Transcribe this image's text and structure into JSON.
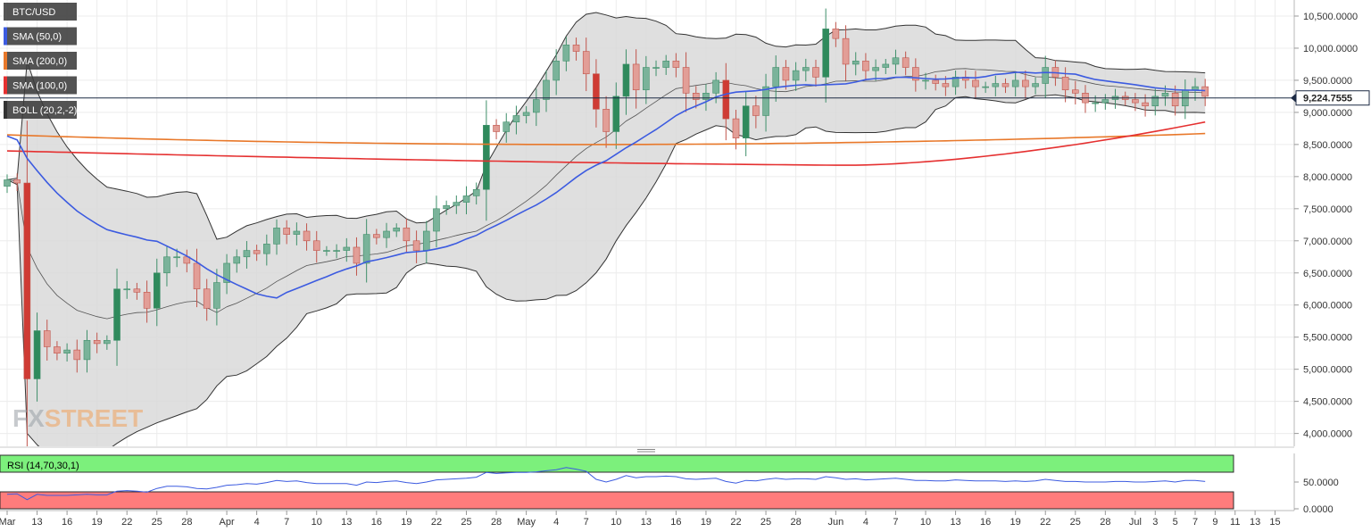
{
  "chart_data": {
    "type": "candlestick",
    "symbol": "BTC/USD",
    "legend": [
      {
        "label": "BTC/USD",
        "color": "#555555"
      },
      {
        "label": "SMA (50,0)",
        "color": "#3c5be0"
      },
      {
        "label": "SMA (200,0)",
        "color": "#e8782a"
      },
      {
        "label": "SMA (100,0)",
        "color": "#e53030"
      },
      {
        "label": "BOLL (20,2,-2)",
        "color": "#333333"
      }
    ],
    "current_price_label": "9,224.7555",
    "current_price": 9224.76,
    "ylim": [
      3800,
      10750
    ],
    "y_ticks": [
      4000,
      4500,
      5000,
      5500,
      6000,
      6500,
      7000,
      7500,
      8000,
      8500,
      9000,
      9500,
      10000,
      10500
    ],
    "y_tick_labels": [
      "4,000.0000",
      "4,500.0000",
      "5,000.0000",
      "5,500.0000",
      "6,000.0000",
      "6,500.0000",
      "7,000.0000",
      "7,500.0000",
      "8,000.0000",
      "8,500.0000",
      "9,000.0000",
      "9,500.0000",
      "10,000.0000",
      "10,500.0000"
    ],
    "x_tick_labels": [
      {
        "day": 0,
        "label": "Mar"
      },
      {
        "day": 3,
        "label": "13"
      },
      {
        "day": 6,
        "label": "16"
      },
      {
        "day": 9,
        "label": "19"
      },
      {
        "day": 12,
        "label": "22"
      },
      {
        "day": 15,
        "label": "25"
      },
      {
        "day": 18,
        "label": "28"
      },
      {
        "day": 22,
        "label": "Apr"
      },
      {
        "day": 25,
        "label": "4"
      },
      {
        "day": 28,
        "label": "7"
      },
      {
        "day": 31,
        "label": "10"
      },
      {
        "day": 34,
        "label": "13"
      },
      {
        "day": 37,
        "label": "16"
      },
      {
        "day": 40,
        "label": "19"
      },
      {
        "day": 43,
        "label": "22"
      },
      {
        "day": 46,
        "label": "25"
      },
      {
        "day": 49,
        "label": "28"
      },
      {
        "day": 52,
        "label": "May"
      },
      {
        "day": 55,
        "label": "4"
      },
      {
        "day": 58,
        "label": "7"
      },
      {
        "day": 61,
        "label": "10"
      },
      {
        "day": 64,
        "label": "13"
      },
      {
        "day": 67,
        "label": "16"
      },
      {
        "day": 70,
        "label": "19"
      },
      {
        "day": 73,
        "label": "22"
      },
      {
        "day": 76,
        "label": "25"
      },
      {
        "day": 79,
        "label": "28"
      },
      {
        "day": 83,
        "label": "Jun"
      },
      {
        "day": 86,
        "label": "4"
      },
      {
        "day": 89,
        "label": "7"
      },
      {
        "day": 92,
        "label": "10"
      },
      {
        "day": 95,
        "label": "13"
      },
      {
        "day": 98,
        "label": "16"
      },
      {
        "day": 101,
        "label": "19"
      },
      {
        "day": 104,
        "label": "22"
      },
      {
        "day": 107,
        "label": "25"
      },
      {
        "day": 110,
        "label": "28"
      },
      {
        "day": 113,
        "label": "Jul"
      },
      {
        "day": 115,
        "label": "3"
      },
      {
        "day": 117,
        "label": "5"
      },
      {
        "day": 119,
        "label": "7"
      },
      {
        "day": 121,
        "label": "9"
      },
      {
        "day": 123,
        "label": "11"
      },
      {
        "day": 125,
        "label": "13"
      },
      {
        "day": 127,
        "label": "15"
      }
    ],
    "candles_close": [
      7950,
      7900,
      4850,
      5600,
      5350,
      5250,
      5300,
      5150,
      5450,
      5400,
      5450,
      6250,
      6250,
      6200,
      5950,
      6500,
      6750,
      6750,
      6650,
      6250,
      5950,
      6350,
      6650,
      6750,
      6850,
      6800,
      6950,
      7200,
      7100,
      7150,
      7000,
      6850,
      6850,
      6850,
      6900,
      6650,
      7100,
      7050,
      7150,
      7200,
      7000,
      6850,
      7150,
      7500,
      7550,
      7600,
      7700,
      7800,
      8800,
      8700,
      8850,
      8950,
      9000,
      9200,
      9500,
      9800,
      10050,
      9950,
      9600,
      9050,
      8700,
      9250,
      9750,
      9350,
      9700,
      9700,
      9800,
      9700,
      9300,
      9200,
      9300,
      9500,
      8900,
      8600,
      9100,
      8950,
      9400,
      9700,
      9500,
      9650,
      9700,
      9550,
      10300,
      10150,
      9750,
      9800,
      9650,
      9700,
      9750,
      9850,
      9700,
      9500,
      9500,
      9450,
      9400,
      9550,
      9500,
      9400,
      9400,
      9450,
      9400,
      9500,
      9400,
      9450,
      9700,
      9550,
      9350,
      9300,
      9150,
      9150,
      9200,
      9250,
      9200,
      9150,
      9100,
      9250,
      9300,
      9100,
      9350,
      9400,
      9250
    ],
    "rsi": {
      "label": "RSI (14,70,30,1)",
      "upper": 70,
      "lower": 30,
      "y_ticks": [
        0,
        50
      ],
      "y_tick_labels": [
        "0.0000",
        "50.0000"
      ],
      "values": [
        27,
        28,
        17,
        27,
        25,
        25,
        25,
        26,
        27,
        26,
        26,
        33,
        34,
        33,
        31,
        38,
        42,
        42,
        41,
        38,
        37,
        40,
        44,
        45,
        47,
        46,
        49,
        53,
        51,
        52,
        49,
        47,
        47,
        47,
        47,
        44,
        50,
        49,
        51,
        52,
        49,
        47,
        50,
        54,
        55,
        56,
        57,
        59,
        68,
        66,
        67,
        68,
        68,
        69,
        71,
        73,
        77,
        74,
        70,
        55,
        50,
        55,
        62,
        58,
        60,
        60,
        61,
        60,
        56,
        55,
        56,
        57,
        51,
        48,
        53,
        52,
        55,
        57,
        55,
        56,
        56,
        55,
        60,
        58,
        55,
        56,
        54,
        55,
        56,
        57,
        55,
        53,
        53,
        52,
        52,
        54,
        53,
        52,
        52,
        52,
        51,
        52,
        51,
        52,
        55,
        53,
        51,
        51,
        50,
        50,
        50,
        51,
        51,
        50,
        50,
        51,
        52,
        50,
        53,
        53,
        51
      ]
    }
  },
  "colors": {
    "up": "#7ab39a",
    "up_border": "#3f8f6a",
    "down": "#e29e97",
    "down_border": "#c0554c",
    "accent_strong_up": "#2f8a5c",
    "accent_strong_down": "#cf3b34",
    "boll_fill": "#d7d7d7",
    "rsi_upper": "#7cf07c",
    "rsi_lower": "#ff7c7c"
  },
  "watermark": {
    "part1": "FX",
    "part2": "STREET"
  }
}
